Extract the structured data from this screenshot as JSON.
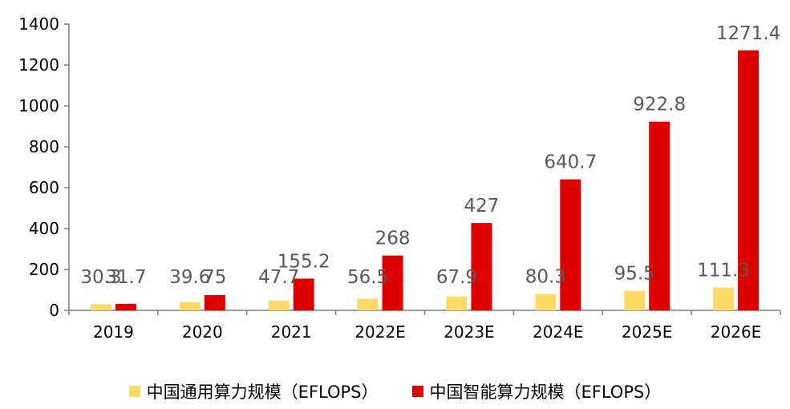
{
  "chart_data": {
    "type": "bar",
    "categories": [
      "2019",
      "2020",
      "2021",
      "2022E",
      "2023E",
      "2024E",
      "2025E",
      "2026E"
    ],
    "series": [
      {
        "name": "中国通用算力规模（EFLOPS）",
        "color": "#FFD966",
        "values": [
          30.3,
          39.6,
          47.7,
          56.5,
          67.9,
          80.3,
          95.5,
          111.3
        ],
        "labels": [
          "30.3",
          "39.6",
          "47.7",
          "56.5",
          "67.9",
          "80.3",
          "95.5",
          "111.3"
        ]
      },
      {
        "name": "中国智能算力规模（EFLOPS）",
        "color": "#E00000",
        "values": [
          31.7,
          75,
          155.2,
          268,
          427,
          640.7,
          922.8,
          1271.4
        ],
        "labels": [
          "31.7",
          "75",
          "155.2",
          "268",
          "427",
          "640.7",
          "922.8",
          "1271.4"
        ]
      }
    ],
    "ylim": [
      0,
      1400
    ],
    "yticks": [
      "0",
      "200",
      "400",
      "600",
      "800",
      "1000",
      "1200",
      "1400"
    ],
    "grid": false,
    "legend_position": "bottom"
  }
}
